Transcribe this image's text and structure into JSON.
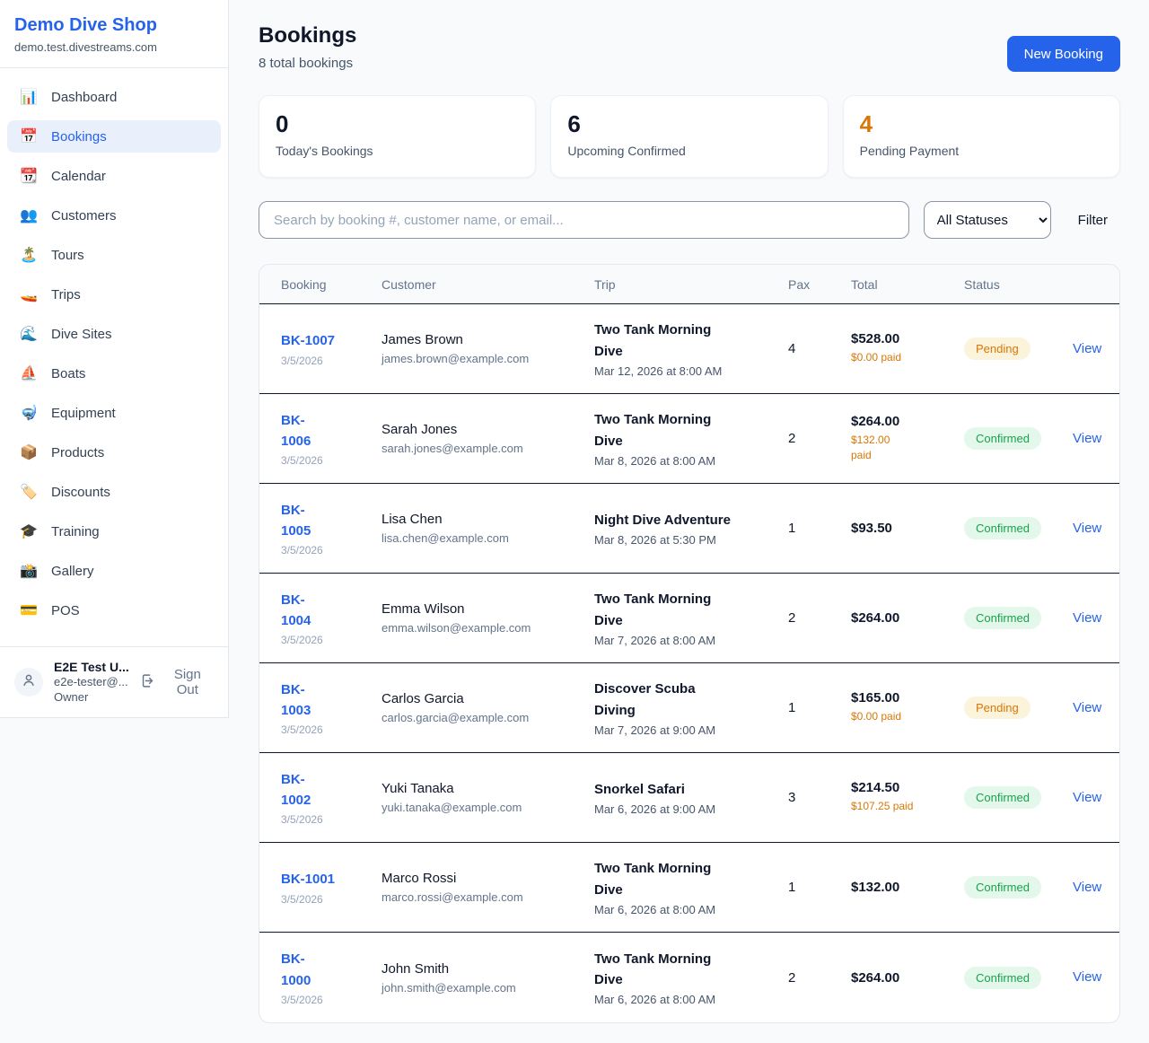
{
  "brand": {
    "name": "Demo Dive Shop",
    "domain": "demo.test.divestreams.com"
  },
  "sidebar": {
    "items": [
      {
        "label": "Dashboard",
        "icon": "📊",
        "icon_name": "bar-chart-icon",
        "active": false
      },
      {
        "label": "Bookings",
        "icon": "📅",
        "icon_name": "calendar-icon",
        "active": true
      },
      {
        "label": "Calendar",
        "icon": "📆",
        "icon_name": "tear-off-calendar-icon",
        "active": false
      },
      {
        "label": "Customers",
        "icon": "👥",
        "icon_name": "people-icon",
        "active": false
      },
      {
        "label": "Tours",
        "icon": "🏝️",
        "icon_name": "island-icon",
        "active": false
      },
      {
        "label": "Trips",
        "icon": "🚤",
        "icon_name": "speedboat-icon",
        "active": false
      },
      {
        "label": "Dive Sites",
        "icon": "🌊",
        "icon_name": "wave-icon",
        "active": false
      },
      {
        "label": "Boats",
        "icon": "⛵",
        "icon_name": "sailboat-icon",
        "active": false
      },
      {
        "label": "Equipment",
        "icon": "🤿",
        "icon_name": "diving-mask-icon",
        "active": false
      },
      {
        "label": "Products",
        "icon": "📦",
        "icon_name": "package-icon",
        "active": false
      },
      {
        "label": "Discounts",
        "icon": "🏷️",
        "icon_name": "tag-icon",
        "active": false
      },
      {
        "label": "Training",
        "icon": "🎓",
        "icon_name": "graduation-cap-icon",
        "active": false
      },
      {
        "label": "Gallery",
        "icon": "📸",
        "icon_name": "camera-flash-icon",
        "active": false
      },
      {
        "label": "POS",
        "icon": "💳",
        "icon_name": "credit-card-icon",
        "active": false
      }
    ],
    "user": {
      "name": "E2E Test U...",
      "email": "e2e-tester@...",
      "role": "Owner",
      "sign_out_label": "Sign Out"
    }
  },
  "header": {
    "title": "Bookings",
    "subtitle": "8 total bookings",
    "new_booking_label": "New Booking"
  },
  "stats": [
    {
      "value": "0",
      "label": "Today's Bookings",
      "color": "#0f172a"
    },
    {
      "value": "6",
      "label": "Upcoming Confirmed",
      "color": "#0f172a"
    },
    {
      "value": "4",
      "label": "Pending Payment",
      "color": "#d97706"
    }
  ],
  "filters": {
    "search_placeholder": "Search by booking #, customer name, or email...",
    "status_selected": "All Statuses",
    "filter_label": "Filter"
  },
  "table": {
    "columns": [
      "Booking",
      "Customer",
      "Trip",
      "Pax",
      "Total",
      "Status"
    ],
    "view_label": "View",
    "rows": [
      {
        "id_lines": [
          "BK-1007"
        ],
        "date": "3/5/2026",
        "customer": "James Brown",
        "email": "james.brown@example.com",
        "trip_lines": [
          "Two Tank Morning",
          "Dive"
        ],
        "trip_datetime": "Mar 12, 2026 at 8:00 AM",
        "pax": "4",
        "total": "$528.00",
        "paid_lines": [
          "$0.00 paid"
        ],
        "status": "Pending"
      },
      {
        "id_lines": [
          "BK-",
          "1006"
        ],
        "date": "3/5/2026",
        "customer": "Sarah Jones",
        "email": "sarah.jones@example.com",
        "trip_lines": [
          "Two Tank Morning",
          "Dive"
        ],
        "trip_datetime": "Mar 8, 2026 at 8:00 AM",
        "pax": "2",
        "total": "$264.00",
        "paid_lines": [
          "$132.00",
          "paid"
        ],
        "status": "Confirmed"
      },
      {
        "id_lines": [
          "BK-",
          "1005"
        ],
        "date": "3/5/2026",
        "customer": "Lisa Chen",
        "email": "lisa.chen@example.com",
        "trip_lines": [
          "Night Dive Adventure"
        ],
        "trip_datetime": "Mar 8, 2026 at 5:30 PM",
        "pax": "1",
        "total": "$93.50",
        "paid_lines": [],
        "status": "Confirmed"
      },
      {
        "id_lines": [
          "BK-",
          "1004"
        ],
        "date": "3/5/2026",
        "customer": "Emma Wilson",
        "email": "emma.wilson@example.com",
        "trip_lines": [
          "Two Tank Morning",
          "Dive"
        ],
        "trip_datetime": "Mar 7, 2026 at 8:00 AM",
        "pax": "2",
        "total": "$264.00",
        "paid_lines": [],
        "status": "Confirmed"
      },
      {
        "id_lines": [
          "BK-",
          "1003"
        ],
        "date": "3/5/2026",
        "customer": "Carlos Garcia",
        "email": "carlos.garcia@example.com",
        "trip_lines": [
          "Discover Scuba",
          "Diving"
        ],
        "trip_datetime": "Mar 7, 2026 at 9:00 AM",
        "pax": "1",
        "total": "$165.00",
        "paid_lines": [
          "$0.00 paid"
        ],
        "status": "Pending"
      },
      {
        "id_lines": [
          "BK-",
          "1002"
        ],
        "date": "3/5/2026",
        "customer": "Yuki Tanaka",
        "email": "yuki.tanaka@example.com",
        "trip_lines": [
          "Snorkel Safari"
        ],
        "trip_datetime": "Mar 6, 2026 at 9:00 AM",
        "pax": "3",
        "total": "$214.50",
        "paid_lines": [
          "$107.25 paid"
        ],
        "status": "Confirmed"
      },
      {
        "id_lines": [
          "BK-1001"
        ],
        "date": "3/5/2026",
        "customer": "Marco Rossi",
        "email": "marco.rossi@example.com",
        "trip_lines": [
          "Two Tank Morning",
          "Dive"
        ],
        "trip_datetime": "Mar 6, 2026 at 8:00 AM",
        "pax": "1",
        "total": "$132.00",
        "paid_lines": [],
        "status": "Confirmed"
      },
      {
        "id_lines": [
          "BK-",
          "1000"
        ],
        "date": "3/5/2026",
        "customer": "John Smith",
        "email": "john.smith@example.com",
        "trip_lines": [
          "Two Tank Morning",
          "Dive"
        ],
        "trip_datetime": "Mar 6, 2026 at 8:00 AM",
        "pax": "2",
        "total": "$264.00",
        "paid_lines": [],
        "status": "Confirmed"
      }
    ]
  },
  "colors": {
    "accent": "#2563eb",
    "pending_fg": "#d97706",
    "pending_bg": "#fbf3da",
    "confirmed_fg": "#16a34a",
    "confirmed_bg": "#e4f7eb",
    "paid_fg": "#d97706",
    "page_bg": "#f8fafc",
    "row_divider": "#0f172a"
  }
}
